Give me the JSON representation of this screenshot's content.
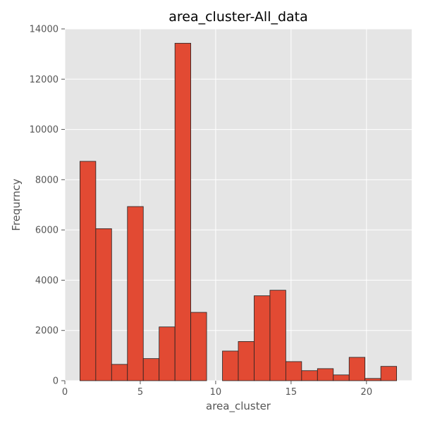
{
  "chart_data": {
    "type": "bar",
    "title": "area_cluster-All_data",
    "xlabel": "area_cluster",
    "ylabel": "Frequrncy",
    "xlim": [
      0,
      23
    ],
    "ylim": [
      0,
      14000
    ],
    "x_ticks": [
      0,
      5,
      10,
      15,
      20
    ],
    "y_ticks": [
      0,
      2000,
      4000,
      6000,
      8000,
      10000,
      12000,
      14000
    ],
    "bins": [
      [
        1.0,
        2.05
      ],
      [
        2.05,
        3.1
      ],
      [
        3.1,
        4.15
      ],
      [
        4.15,
        5.2
      ],
      [
        5.2,
        6.25
      ],
      [
        6.25,
        7.3
      ],
      [
        7.3,
        8.35
      ],
      [
        8.35,
        9.4
      ],
      [
        9.4,
        10.45
      ],
      [
        10.45,
        11.5
      ],
      [
        11.5,
        12.55
      ],
      [
        12.55,
        13.6
      ],
      [
        13.6,
        14.65
      ],
      [
        14.65,
        15.7
      ],
      [
        15.7,
        16.75
      ],
      [
        16.75,
        17.8
      ],
      [
        17.8,
        18.85
      ],
      [
        18.85,
        19.9
      ],
      [
        19.9,
        20.95
      ],
      [
        20.95,
        22.0
      ]
    ],
    "values": [
      8730,
      6050,
      650,
      6930,
      880,
      2140,
      13430,
      2720,
      0,
      1180,
      1560,
      3380,
      3600,
      760,
      400,
      480,
      230,
      930,
      90,
      570
    ],
    "grid": true,
    "colors": {
      "bar_fill": "#E24A33",
      "bar_edge": "#222222",
      "plot_background": "#E5E5E5",
      "grid": "#FFFFFF"
    }
  }
}
